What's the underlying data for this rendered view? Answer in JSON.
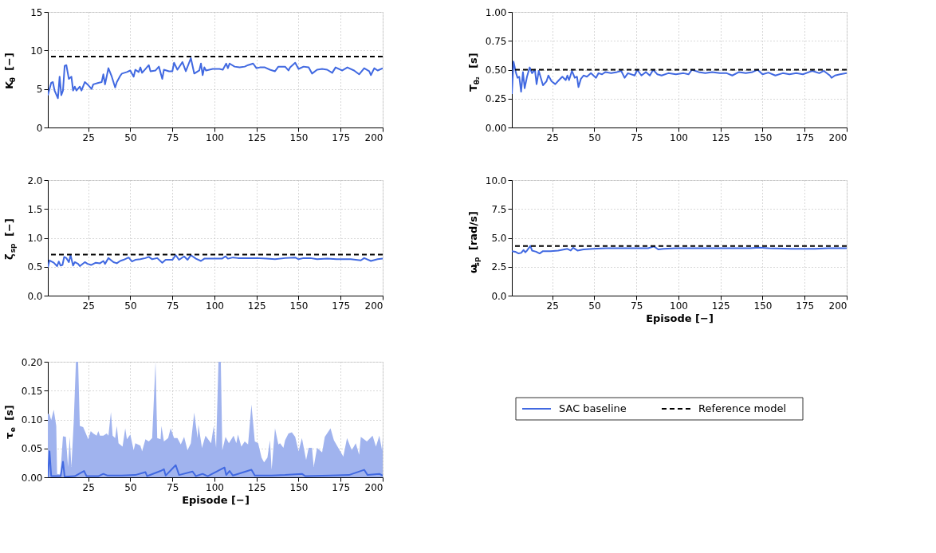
{
  "chart_data": [
    {
      "type": "line",
      "ylabel": "K$_{θ}$ [−]",
      "xlim": [
        1,
        200
      ],
      "xticks": [
        25,
        50,
        75,
        100,
        125,
        150,
        175,
        200
      ],
      "ylim": [
        0,
        15
      ],
      "yticks": [
        0,
        5,
        10,
        15
      ],
      "grid": true,
      "legend": "bottom right",
      "series": [
        {
          "name": "SAC baseline",
          "color": "#4169e1",
          "type": "line",
          "x": [
            1,
            3,
            4,
            5,
            7,
            8,
            9,
            10,
            11,
            12,
            13.5,
            15,
            16,
            17,
            18,
            20,
            21,
            23,
            25,
            27,
            28,
            31,
            33,
            34,
            35,
            37,
            39,
            41,
            42,
            44,
            45,
            48,
            50,
            52,
            53,
            55,
            56,
            57,
            59,
            61,
            62,
            65,
            67,
            69,
            70,
            73,
            75,
            76,
            78,
            81,
            83,
            86,
            88,
            91,
            92,
            93,
            94,
            95,
            99,
            103,
            105,
            107,
            108,
            109,
            112,
            115,
            118,
            120,
            123,
            125,
            127,
            130,
            133,
            136,
            138,
            142,
            144,
            145,
            148,
            150,
            153,
            156,
            158,
            161,
            164,
            167,
            170,
            172,
            176,
            179,
            183,
            186,
            189,
            192,
            193,
            195,
            197,
            200
          ],
          "values": [
            4.2,
            5.8,
            5.9,
            4.8,
            3.8,
            6.6,
            4.2,
            4.8,
            8.0,
            8.1,
            6.3,
            6.6,
            4.8,
            5.3,
            4.8,
            5.3,
            4.8,
            5.9,
            5.5,
            5.0,
            5.6,
            5.8,
            5.9,
            6.9,
            5.6,
            7.7,
            6.6,
            5.2,
            5.9,
            6.7,
            7.0,
            7.2,
            7.4,
            6.6,
            7.5,
            7.2,
            7.8,
            7.1,
            7.6,
            8.1,
            7.3,
            7.4,
            7.9,
            6.3,
            7.5,
            7.3,
            7.3,
            8.4,
            7.5,
            8.5,
            7.3,
            9.0,
            7.0,
            7.4,
            8.3,
            6.8,
            7.8,
            7.4,
            7.6,
            7.6,
            7.5,
            8.3,
            7.7,
            8.3,
            7.9,
            7.8,
            7.9,
            8.1,
            8.3,
            7.7,
            7.8,
            7.8,
            7.5,
            7.3,
            7.9,
            7.9,
            7.4,
            7.8,
            8.4,
            7.6,
            7.9,
            7.8,
            7.0,
            7.5,
            7.6,
            7.5,
            7.1,
            7.8,
            7.4,
            7.8,
            7.4,
            6.9,
            7.7,
            7.3,
            6.8,
            7.7,
            7.4,
            7.7
          ]
        }
      ],
      "ref_lines": [
        {
          "axis": "y",
          "value": 9.2,
          "label": "Reference model",
          "color": "#000000",
          "line_style": "dashed"
        }
      ]
    },
    {
      "type": "line",
      "ylabel": "T$_{θ₂}$ [s]",
      "xlim": [
        1,
        200
      ],
      "xticks": [
        25,
        50,
        75,
        100,
        125,
        150,
        175,
        200
      ],
      "ylim": [
        0,
        1
      ],
      "yticks": [
        {
          "value": 0,
          "label": "0.00"
        },
        0.25,
        {
          "value": 0.5,
          "label": "0.50"
        },
        0.75,
        {
          "value": 1,
          "label": "1.00"
        }
      ],
      "grid": true,
      "series": [
        {
          "name": "SAC baseline",
          "color": "#4169e1",
          "type": "line",
          "x": [
            1,
            2,
            3.5,
            4.4,
            5.4,
            6.5,
            7.6,
            8.6,
            10,
            11.6,
            13,
            14.7,
            15.7,
            17,
            19.5,
            21.6,
            22.7,
            24.6,
            26.8,
            29,
            31,
            33,
            34,
            35,
            36.7,
            38.4,
            39.7,
            40.6,
            42,
            43.6,
            45.6,
            48,
            51,
            52.5,
            54.6,
            56.6,
            60,
            63.5,
            66,
            68,
            70,
            74,
            75.5,
            78,
            80.7,
            83,
            85,
            87.5,
            90,
            94,
            98.5,
            103,
            106,
            108,
            112,
            116,
            120,
            124.6,
            128.7,
            132,
            136,
            140,
            144,
            147,
            150,
            153.5,
            157.6,
            162,
            166,
            170,
            174,
            179.6,
            183.7,
            186.4,
            190,
            191,
            193,
            196,
            200
          ],
          "values": [
            0.29,
            0.57,
            0.47,
            0.43,
            0.44,
            0.31,
            0.48,
            0.34,
            0.44,
            0.52,
            0.47,
            0.5,
            0.375,
            0.49,
            0.365,
            0.4,
            0.45,
            0.4,
            0.375,
            0.41,
            0.44,
            0.41,
            0.45,
            0.41,
            0.49,
            0.43,
            0.44,
            0.35,
            0.42,
            0.45,
            0.44,
            0.47,
            0.43,
            0.47,
            0.46,
            0.48,
            0.47,
            0.48,
            0.49,
            0.43,
            0.47,
            0.45,
            0.5,
            0.45,
            0.48,
            0.45,
            0.5,
            0.46,
            0.45,
            0.47,
            0.46,
            0.47,
            0.46,
            0.5,
            0.48,
            0.47,
            0.48,
            0.47,
            0.47,
            0.45,
            0.48,
            0.47,
            0.48,
            0.5,
            0.46,
            0.475,
            0.45,
            0.47,
            0.46,
            0.47,
            0.46,
            0.49,
            0.47,
            0.49,
            0.45,
            0.43,
            0.45,
            0.46,
            0.47
          ]
        }
      ],
      "ref_lines": [
        {
          "axis": "y",
          "value": 0.5,
          "color": "#000000",
          "line_style": "dashed"
        }
      ]
    },
    {
      "type": "line",
      "ylabel": "ζ$_{sp}$ [−]",
      "xlim": [
        1,
        200
      ],
      "xticks": [
        25,
        50,
        75,
        100,
        125,
        150,
        175,
        200
      ],
      "ylim": [
        0,
        2
      ],
      "yticks": [
        {
          "value": 0,
          "label": "0.0"
        },
        0.5,
        {
          "value": 1,
          "label": "1.0"
        },
        1.5,
        {
          "value": 2,
          "label": "2.0"
        }
      ],
      "grid": true,
      "series": [
        {
          "name": "SAC baseline",
          "color": "#4169e1",
          "type": "line",
          "x": [
            1,
            2,
            4.5,
            6.5,
            7.5,
            8.6,
            9.7,
            10.7,
            12,
            13.5,
            14.5,
            16,
            17,
            19,
            20,
            23,
            24.6,
            26.7,
            29.5,
            32,
            34,
            35,
            37,
            40,
            42,
            44,
            46,
            49,
            51,
            53,
            56,
            59,
            61,
            63,
            66,
            69,
            71,
            75,
            77,
            79,
            82,
            84,
            86,
            89,
            92,
            94,
            99,
            104.5,
            106.6,
            108,
            111,
            114,
            120,
            125,
            131,
            136,
            142,
            148,
            150,
            153,
            157,
            161,
            167,
            172.5,
            177,
            181,
            187,
            189,
            193,
            197,
            200
          ],
          "values": [
            0.49,
            0.61,
            0.57,
            0.51,
            0.59,
            0.52,
            0.53,
            0.67,
            0.65,
            0.58,
            0.7,
            0.52,
            0.58,
            0.55,
            0.51,
            0.58,
            0.55,
            0.53,
            0.57,
            0.56,
            0.6,
            0.55,
            0.65,
            0.58,
            0.56,
            0.6,
            0.62,
            0.66,
            0.59,
            0.62,
            0.63,
            0.65,
            0.67,
            0.63,
            0.65,
            0.57,
            0.62,
            0.62,
            0.7,
            0.62,
            0.68,
            0.62,
            0.7,
            0.64,
            0.6,
            0.64,
            0.64,
            0.64,
            0.68,
            0.64,
            0.66,
            0.65,
            0.65,
            0.65,
            0.64,
            0.63,
            0.65,
            0.66,
            0.63,
            0.65,
            0.65,
            0.63,
            0.64,
            0.63,
            0.63,
            0.63,
            0.61,
            0.65,
            0.6,
            0.63,
            0.64
          ]
        }
      ],
      "ref_lines": [
        {
          "axis": "y",
          "value": 0.71,
          "color": "#000000",
          "line_style": "dashed"
        }
      ]
    },
    {
      "type": "line",
      "ylabel": "ω$_{sp}$ [rad/s]",
      "xlabel": "Episode [−]",
      "xlim": [
        1,
        200
      ],
      "xticks": [
        25,
        50,
        75,
        100,
        125,
        150,
        175,
        200
      ],
      "ylim": [
        0,
        10
      ],
      "yticks": [
        {
          "value": 0,
          "label": "0.0"
        },
        2.5,
        {
          "value": 5,
          "label": "5.0"
        },
        7.5,
        {
          "value": 10,
          "label": "10.0"
        }
      ],
      "grid": true,
      "series": [
        {
          "name": "SAC baseline",
          "color": "#4169e1",
          "type": "line",
          "x": [
            1,
            3,
            5,
            6.5,
            8,
            9,
            10,
            12,
            13,
            15.4,
            17.5,
            19.5,
            24,
            28.5,
            34,
            36,
            37.4,
            40,
            43.6,
            49,
            57,
            65.6,
            74,
            82,
            85.5,
            88,
            91,
            98.5,
            109.5,
            120.5,
            131.5,
            142.5,
            148,
            153.5,
            167,
            181,
            189,
            200
          ],
          "values": [
            3.85,
            3.8,
            3.65,
            3.7,
            3.95,
            3.75,
            3.9,
            4.3,
            3.9,
            3.8,
            3.65,
            3.85,
            3.85,
            3.9,
            4.05,
            3.9,
            4.15,
            3.9,
            4.0,
            4.05,
            4.1,
            4.1,
            4.1,
            4.1,
            4.25,
            4.0,
            4.05,
            4.1,
            4.1,
            4.1,
            4.1,
            4.1,
            4.15,
            4.1,
            4.05,
            4.05,
            4.1,
            4.1
          ]
        }
      ],
      "ref_lines": [
        {
          "axis": "y",
          "value": 4.3,
          "color": "#000000",
          "line_style": "dashed"
        }
      ]
    },
    {
      "type": "line",
      "ylabel": "τ$_{e}$ [s]",
      "xlabel": "Episode [−]",
      "xlim": [
        1,
        200
      ],
      "xticks": [
        25,
        50,
        75,
        100,
        125,
        150,
        175,
        200
      ],
      "ylim": [
        0,
        0.2
      ],
      "yticks": [
        {
          "value": 0,
          "label": "0.00"
        },
        0.05,
        {
          "value": 0.1,
          "label": "0.10"
        },
        0.15,
        {
          "value": 0.2,
          "label": "0.20"
        }
      ],
      "grid": true,
      "series": [
        {
          "color": "#a0b3ee",
          "type": "area",
          "x": [
            1,
            2,
            3,
            4.5,
            6,
            6.5,
            8.4,
            10,
            11.7,
            13,
            14,
            15,
            16.4,
            17.7,
            19,
            20,
            22,
            23.6,
            25,
            26.5,
            28,
            30,
            31,
            32,
            34,
            36,
            37,
            38.5,
            39.5,
            41,
            42,
            43,
            45.4,
            47,
            48,
            50,
            52,
            53,
            56,
            57,
            59,
            61,
            63,
            65,
            66,
            68,
            68.5,
            70,
            72.5,
            74,
            76,
            78,
            80,
            82,
            84,
            86,
            88,
            90,
            90.5,
            92.6,
            94.7,
            98,
            99.6,
            101,
            102.4,
            103.8,
            104.7,
            106.6,
            108.6,
            111.4,
            113,
            114,
            116,
            118,
            120,
            122,
            124,
            126,
            128,
            129.5,
            131.5,
            133,
            134,
            136,
            138,
            139,
            141,
            142,
            144,
            146,
            148,
            150,
            152,
            154.5,
            156,
            158,
            159,
            161,
            164,
            165.6,
            169,
            171,
            174,
            176.6,
            178.8,
            181.6,
            184,
            186,
            187,
            190.6,
            194,
            196,
            198,
            199.6,
            200
          ],
          "values": [
            0.11,
            0.109,
            0.099,
            0.117,
            0.089,
            0.006,
            0.005,
            0.071,
            0.07,
            0.018,
            0.07,
            0.018,
            0.097,
            0.2,
            0.2,
            0.089,
            0.087,
            0.076,
            0.066,
            0.08,
            0.076,
            0.072,
            0.08,
            0.072,
            0.072,
            0.076,
            0.072,
            0.113,
            0.072,
            0.068,
            0.089,
            0.059,
            0.053,
            0.085,
            0.066,
            0.074,
            0.047,
            0.059,
            0.055,
            0.045,
            0.066,
            0.062,
            0.068,
            0.2,
            0.068,
            0.066,
            0.089,
            0.062,
            0.068,
            0.085,
            0.068,
            0.068,
            0.057,
            0.07,
            0.047,
            0.059,
            0.112,
            0.068,
            0.091,
            0.051,
            0.072,
            0.059,
            0.089,
            0.051,
            0.2,
            0.2,
            0.047,
            0.07,
            0.059,
            0.072,
            0.059,
            0.074,
            0.053,
            0.062,
            0.057,
            0.126,
            0.062,
            0.059,
            0.034,
            0.026,
            0.034,
            0.064,
            0.013,
            0.085,
            0.057,
            0.059,
            0.051,
            0.064,
            0.076,
            0.078,
            0.07,
            0.045,
            0.068,
            0.03,
            0.051,
            0.051,
            0.018,
            0.051,
            0.043,
            0.07,
            0.085,
            0.064,
            0.049,
            0.036,
            0.068,
            0.047,
            0.059,
            0.039,
            0.07,
            0.062,
            0.072,
            0.053,
            0.072,
            0.047,
            0.068
          ]
        },
        {
          "name": "SAC baseline",
          "color": "#4169e1",
          "type": "line",
          "x": [
            1,
            2,
            3,
            6,
            8.6,
            10,
            11,
            17,
            22.5,
            24,
            31,
            34,
            36.5,
            45,
            53,
            59,
            60,
            68,
            70,
            71,
            77,
            79,
            87,
            89,
            93,
            96,
            106,
            107,
            109,
            111,
            122,
            124,
            134,
            142,
            152,
            154,
            169,
            180,
            189,
            191,
            198,
            200
          ],
          "values": [
            0.0,
            0.045,
            0.002,
            0.002,
            0.002,
            0.027,
            0.001,
            0.002,
            0.011,
            0.002,
            0.002,
            0.006,
            0.003,
            0.003,
            0.004,
            0.009,
            0.002,
            0.011,
            0.014,
            0.003,
            0.021,
            0.004,
            0.01,
            0.002,
            0.006,
            0.002,
            0.017,
            0.004,
            0.011,
            0.003,
            0.013,
            0.003,
            0.003,
            0.004,
            0.006,
            0.002,
            0.003,
            0.004,
            0.013,
            0.004,
            0.006,
            0.003
          ]
        }
      ]
    }
  ]
}
